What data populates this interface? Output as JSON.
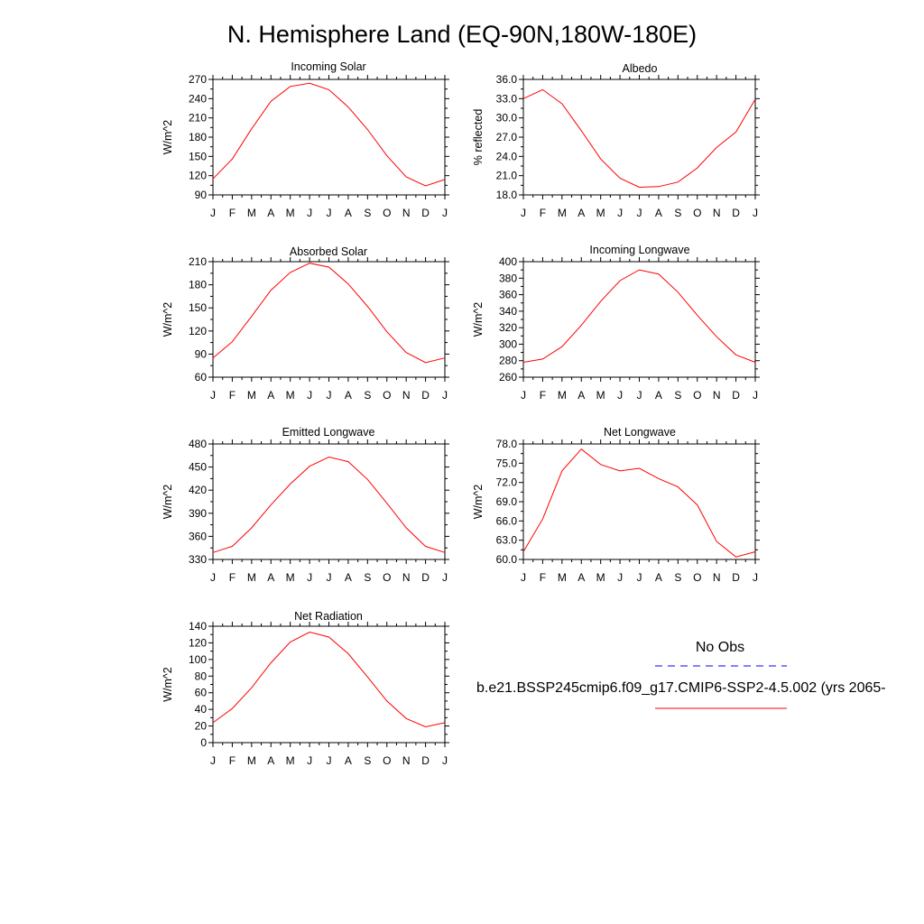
{
  "title": "N. Hemisphere Land (EQ-90N,180W-180E)",
  "months": [
    "J",
    "F",
    "M",
    "A",
    "M",
    "J",
    "J",
    "A",
    "S",
    "O",
    "N",
    "D",
    "J"
  ],
  "colors": {
    "model": "#ff0000",
    "obs": "#0000ff",
    "axis": "#000000"
  },
  "legend": {
    "obs_label": "No Obs",
    "model_label": "b.e21.BSSP245cmip6.f09_g17.CMIP6-SSP2-4.5.002 (yrs 2065-"
  },
  "chart_data": [
    {
      "type": "line",
      "title": "Incoming Solar",
      "ylabel": "W/m^2",
      "ylim": [
        90,
        270
      ],
      "yticks": [
        "90",
        "120",
        "150",
        "180",
        "210",
        "240",
        "270"
      ],
      "categories": [
        "J",
        "F",
        "M",
        "A",
        "M",
        "J",
        "J",
        "A",
        "S",
        "O",
        "N",
        "D",
        "J"
      ],
      "series": [
        {
          "values": [
            115,
            146,
            193,
            236,
            259,
            264,
            254,
            227,
            192,
            151,
            118,
            104,
            114
          ]
        }
      ]
    },
    {
      "type": "line",
      "title": "Albedo",
      "ylabel": "% reflected",
      "ylim": [
        18,
        36
      ],
      "yticks": [
        "18.0",
        "21.0",
        "24.0",
        "27.0",
        "30.0",
        "33.0",
        "36.0"
      ],
      "categories": [
        "J",
        "F",
        "M",
        "A",
        "M",
        "J",
        "J",
        "A",
        "S",
        "O",
        "N",
        "D",
        "J"
      ],
      "series": [
        {
          "values": [
            33.0,
            34.4,
            32.2,
            28.0,
            23.6,
            20.6,
            19.2,
            19.3,
            20.0,
            22.2,
            25.4,
            27.8,
            32.9
          ]
        }
      ]
    },
    {
      "type": "line",
      "title": "Absorbed Solar",
      "ylabel": "W/m^2",
      "ylim": [
        60,
        210
      ],
      "yticks": [
        "60",
        "90",
        "120",
        "150",
        "180",
        "210"
      ],
      "categories": [
        "J",
        "F",
        "M",
        "A",
        "M",
        "J",
        "J",
        "A",
        "S",
        "O",
        "N",
        "D",
        "J"
      ],
      "series": [
        {
          "values": [
            85,
            106,
            139,
            173,
            196,
            208,
            203,
            181,
            152,
            119,
            92,
            79,
            85
          ]
        }
      ]
    },
    {
      "type": "line",
      "title": "Incoming Longwave",
      "ylabel": "W/m^2",
      "ylim": [
        260,
        400
      ],
      "yticks": [
        "260",
        "280",
        "300",
        "320",
        "340",
        "360",
        "380",
        "400"
      ],
      "categories": [
        "J",
        "F",
        "M",
        "A",
        "M",
        "J",
        "J",
        "A",
        "S",
        "O",
        "N",
        "D",
        "J"
      ],
      "series": [
        {
          "values": [
            278,
            282,
            297,
            323,
            352,
            377,
            390,
            385,
            363,
            335,
            309,
            287,
            278
          ]
        }
      ]
    },
    {
      "type": "line",
      "title": "Emitted Longwave",
      "ylabel": "W/m^2",
      "ylim": [
        330,
        480
      ],
      "yticks": [
        "330",
        "360",
        "390",
        "420",
        "450",
        "480"
      ],
      "categories": [
        "J",
        "F",
        "M",
        "A",
        "M",
        "J",
        "J",
        "A",
        "S",
        "O",
        "N",
        "D",
        "J"
      ],
      "series": [
        {
          "values": [
            339,
            347,
            371,
            401,
            428,
            451,
            463,
            457,
            434,
            403,
            371,
            347,
            339
          ]
        }
      ]
    },
    {
      "type": "line",
      "title": "Net Longwave",
      "ylabel": "W/m^2",
      "ylim": [
        60,
        78
      ],
      "yticks": [
        "60.0",
        "63.0",
        "66.0",
        "69.0",
        "72.0",
        "75.0",
        "78.0"
      ],
      "categories": [
        "J",
        "F",
        "M",
        "A",
        "M",
        "J",
        "J",
        "A",
        "S",
        "O",
        "N",
        "D",
        "J"
      ],
      "series": [
        {
          "values": [
            61.2,
            66.3,
            73.8,
            77.2,
            74.8,
            73.8,
            74.2,
            72.6,
            71.3,
            68.5,
            62.8,
            60.4,
            61.2
          ]
        }
      ]
    },
    {
      "type": "line",
      "title": "Net Radiation",
      "ylabel": "W/m^2",
      "ylim": [
        0,
        140
      ],
      "yticks": [
        "0",
        "20",
        "40",
        "60",
        "80",
        "100",
        "120",
        "140"
      ],
      "categories": [
        "J",
        "F",
        "M",
        "A",
        "M",
        "J",
        "J",
        "A",
        "S",
        "O",
        "N",
        "D",
        "J"
      ],
      "series": [
        {
          "values": [
            24,
            41,
            66,
            96,
            121,
            133,
            127,
            107,
            79,
            50,
            29,
            19,
            24
          ]
        }
      ]
    }
  ]
}
